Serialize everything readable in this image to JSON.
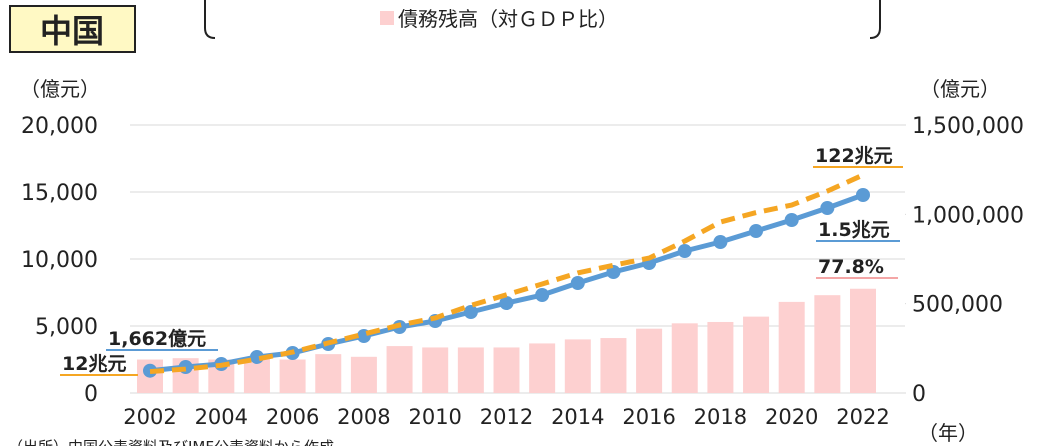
{
  "chart_data": {
    "type": "bar_line",
    "title": "中国",
    "y_unit": "（億元）",
    "y2_unit": "（億元）",
    "x_unit": "（年）",
    "source": "（出所）中国公表資料及びIMF公表資料から作成",
    "categories": [
      "2002",
      null,
      "2004",
      null,
      "2006",
      null,
      "2008",
      null,
      "2010",
      null,
      "2012",
      null,
      "2014",
      null,
      "2016",
      null,
      "2018",
      null,
      "2020",
      null,
      "2022"
    ],
    "ylim": [
      0,
      20000
    ],
    "yticks": [
      {
        "value": 0,
        "label": "0"
      },
      {
        "value": 5000,
        "label": "5,000"
      },
      {
        "value": 10000,
        "label": "10,000"
      },
      {
        "value": 15000,
        "label": "15,000"
      },
      {
        "value": 20000,
        "label": "20,000"
      }
    ],
    "y2lim": [
      0,
      1500000
    ],
    "y2ticks": [
      {
        "value": 0,
        "label": "0"
      },
      {
        "value": 500000,
        "label": "500,000"
      },
      {
        "value": 1000000,
        "label": "1,000,000"
      },
      {
        "value": 1500000,
        "label": "1,500,000"
      }
    ],
    "y3lim": [
      0,
      200
    ],
    "grid": true,
    "series": [
      {
        "name": "債務残高（対ＧＤＰ比）",
        "type": "bar",
        "axis": "y3",
        "color": "#fdd0d0",
        "values": [
          25,
          26,
          25,
          26,
          25,
          29,
          27,
          35,
          34,
          34,
          34,
          37,
          40,
          41,
          48,
          52,
          53,
          57,
          68,
          73,
          77.8
        ]
      },
      {
        "type": "line",
        "axis": "y",
        "color": "#5b9bd5",
        "values": [
          1662,
          1940,
          2164,
          2690,
          2985,
          3657,
          4254,
          4925,
          5373,
          6045,
          6716,
          7313,
          8209,
          9030,
          9701,
          10597,
          11269,
          12090,
          12910,
          13806,
          14776
        ]
      },
      {
        "type": "line",
        "axis": "y2",
        "color": "#f5a623",
        "dashed": true,
        "values": [
          120000,
          134000,
          155000,
          190000,
          229000,
          280000,
          330000,
          380000,
          420000,
          490000,
          550000,
          610000,
          672000,
          715000,
          755000,
          850000,
          957000,
          1010000,
          1052000,
          1130000,
          1220000
        ]
      }
    ],
    "annotations": [
      {
        "text": "1,662億元",
        "color": "#5b9bd5"
      },
      {
        "text": "12兆元",
        "color": "#f5a623"
      },
      {
        "text": "122兆元",
        "color": "#f5a623"
      },
      {
        "text": "1.5兆元",
        "color": "#5b9bd5"
      },
      {
        "text": "77.8%",
        "color": "#f4a6a6"
      }
    ]
  }
}
